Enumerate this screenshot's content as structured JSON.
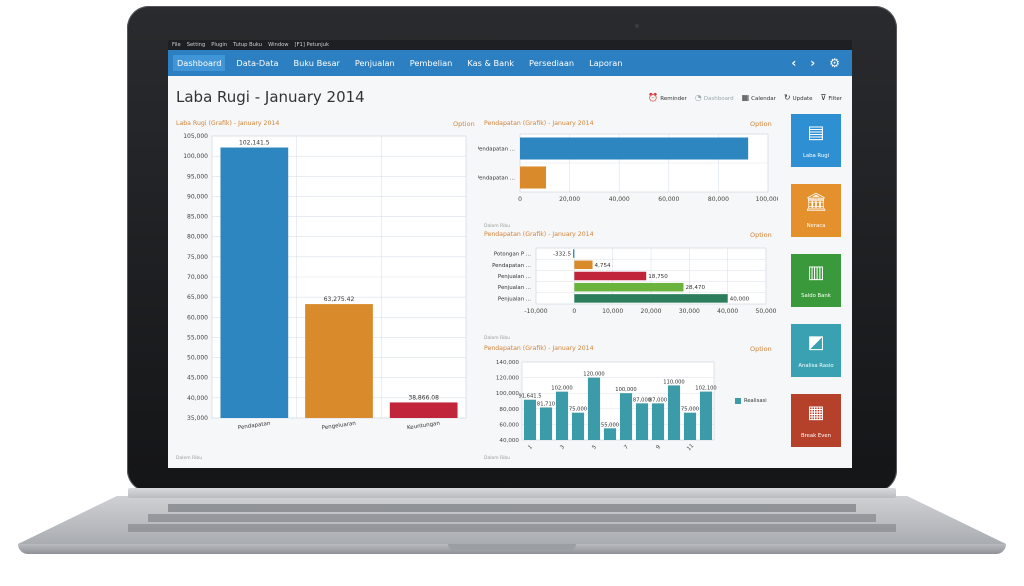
{
  "menubar": {
    "items": [
      "File",
      "Setting",
      "Plugin",
      "Tutup Buku",
      "Window",
      "[F1] Petunjuk"
    ]
  },
  "navbar": {
    "tabs": [
      "Dashboard",
      "Data-Data",
      "Buku Besar",
      "Penjualan",
      "Pembelian",
      "Kas & Bank",
      "Persediaan",
      "Laporan"
    ],
    "active": "Dashboard",
    "prev": "‹",
    "next": "›",
    "settings": "⚙"
  },
  "page": {
    "title": "Laba Rugi - January 2014"
  },
  "toolbar": {
    "reminder": "Reminder",
    "dashboard": "Dashboard",
    "calendar": "Calendar",
    "update": "Update",
    "filter": "Filter"
  },
  "colors": {
    "nav": "#2c7fc0",
    "accent": "#d1843a",
    "blue": "#2e86c1",
    "orange": "#d98a2b",
    "red": "#c0253b",
    "green": "#6ab43e",
    "teal": "#2b7d5c",
    "cyan": "#3c9ba8"
  },
  "labels": {
    "option": "Option",
    "dalem_ribu": "Dalem Ribu",
    "realisasi": "Realisasi"
  },
  "tiles": [
    {
      "label": "Laba Rugi",
      "icon": "chart-money-icon",
      "color": "#2f8fd3"
    },
    {
      "label": "Neraca",
      "icon": "bank-building-icon",
      "color": "#e3902d"
    },
    {
      "label": "Saldo Bank",
      "icon": "bank-chart-icon",
      "color": "#3a9a3b"
    },
    {
      "label": "Analisa Rasio",
      "icon": "ratio-chart-icon",
      "color": "#3aa1b2"
    },
    {
      "label": "Break Even",
      "icon": "break-even-icon",
      "color": "#b5412b"
    }
  ],
  "chart_data": [
    {
      "type": "bar",
      "title": "Laba Rugi (Grafik) - January 2014",
      "categories": [
        "Pendapatan",
        "Pengeluaran",
        "Keuntungan"
      ],
      "values": [
        102141.5,
        63275.42,
        38866.08
      ],
      "data_labels": [
        "102,141.5",
        "63,275.42",
        "38,866.08"
      ],
      "colors": [
        "#2e86c1",
        "#d98a2b",
        "#c0253b"
      ],
      "ylim": [
        35000,
        105000
      ],
      "yticks": [
        "105,000",
        "100,000",
        "95,000",
        "90,000",
        "85,000",
        "80,000",
        "75,000",
        "70,000",
        "65,000",
        "60,000",
        "55,000",
        "50,000",
        "45,000",
        "40,000",
        "35,000"
      ],
      "grid": true
    },
    {
      "type": "bar",
      "orientation": "horizontal",
      "title": "Pendapatan (Grafik) - January 2014",
      "categories": [
        "Pendapatan ...",
        "Pendapatan ..."
      ],
      "values": [
        92000,
        10500
      ],
      "colors": [
        "#2e86c1",
        "#d98a2b"
      ],
      "xlim": [
        0,
        100000
      ],
      "xticks": [
        "0",
        "20,000",
        "40,000",
        "60,000",
        "80,000",
        "100,000"
      ],
      "grid": true
    },
    {
      "type": "bar",
      "orientation": "horizontal",
      "title": "Pendapatan (Grafik) - January 2014",
      "categories": [
        "Potongan P ...",
        "Pendapatan ...",
        "Penjualan ...",
        "Penjualan ...",
        "Penjualan ..."
      ],
      "values": [
        -332.5,
        4754,
        18750,
        28470,
        40000
      ],
      "data_labels": [
        "-332.5",
        "4,754",
        "18,750",
        "28,470",
        "40,000"
      ],
      "colors": [
        "#2e86c1",
        "#d98a2b",
        "#c0253b",
        "#6ab43e",
        "#2b7d5c"
      ],
      "xlim": [
        -10000,
        50000
      ],
      "xticks": [
        "-10,000",
        "0",
        "10,000",
        "20,000",
        "30,000",
        "40,000",
        "50,000"
      ],
      "grid": true
    },
    {
      "type": "bar",
      "title": "Pendapatan (Grafik) - January 2014",
      "x": [
        1,
        2,
        3,
        4,
        5,
        6,
        7,
        8,
        9,
        10,
        11,
        12
      ],
      "xticks": [
        "1",
        "3",
        "5",
        "7",
        "9",
        "11"
      ],
      "series": [
        {
          "name": "Realisasi",
          "values": [
            91641.5,
            81710,
            102000,
            75000,
            120000,
            55000,
            100000,
            87000,
            87000,
            110000,
            75000,
            102100
          ]
        }
      ],
      "data_labels": [
        "91,641.5",
        "81,710",
        "102,000",
        "75,000",
        "120,000",
        "55,000",
        "100,000",
        "87,000",
        "87,000",
        "110,000",
        "75,000",
        "102,100"
      ],
      "color": "#3c9ba8",
      "ylim": [
        40000,
        140000
      ],
      "yticks": [
        "140,000",
        "120,000",
        "100,000",
        "80,000",
        "60,000",
        "40,000"
      ],
      "legend": "right",
      "grid": true
    }
  ]
}
